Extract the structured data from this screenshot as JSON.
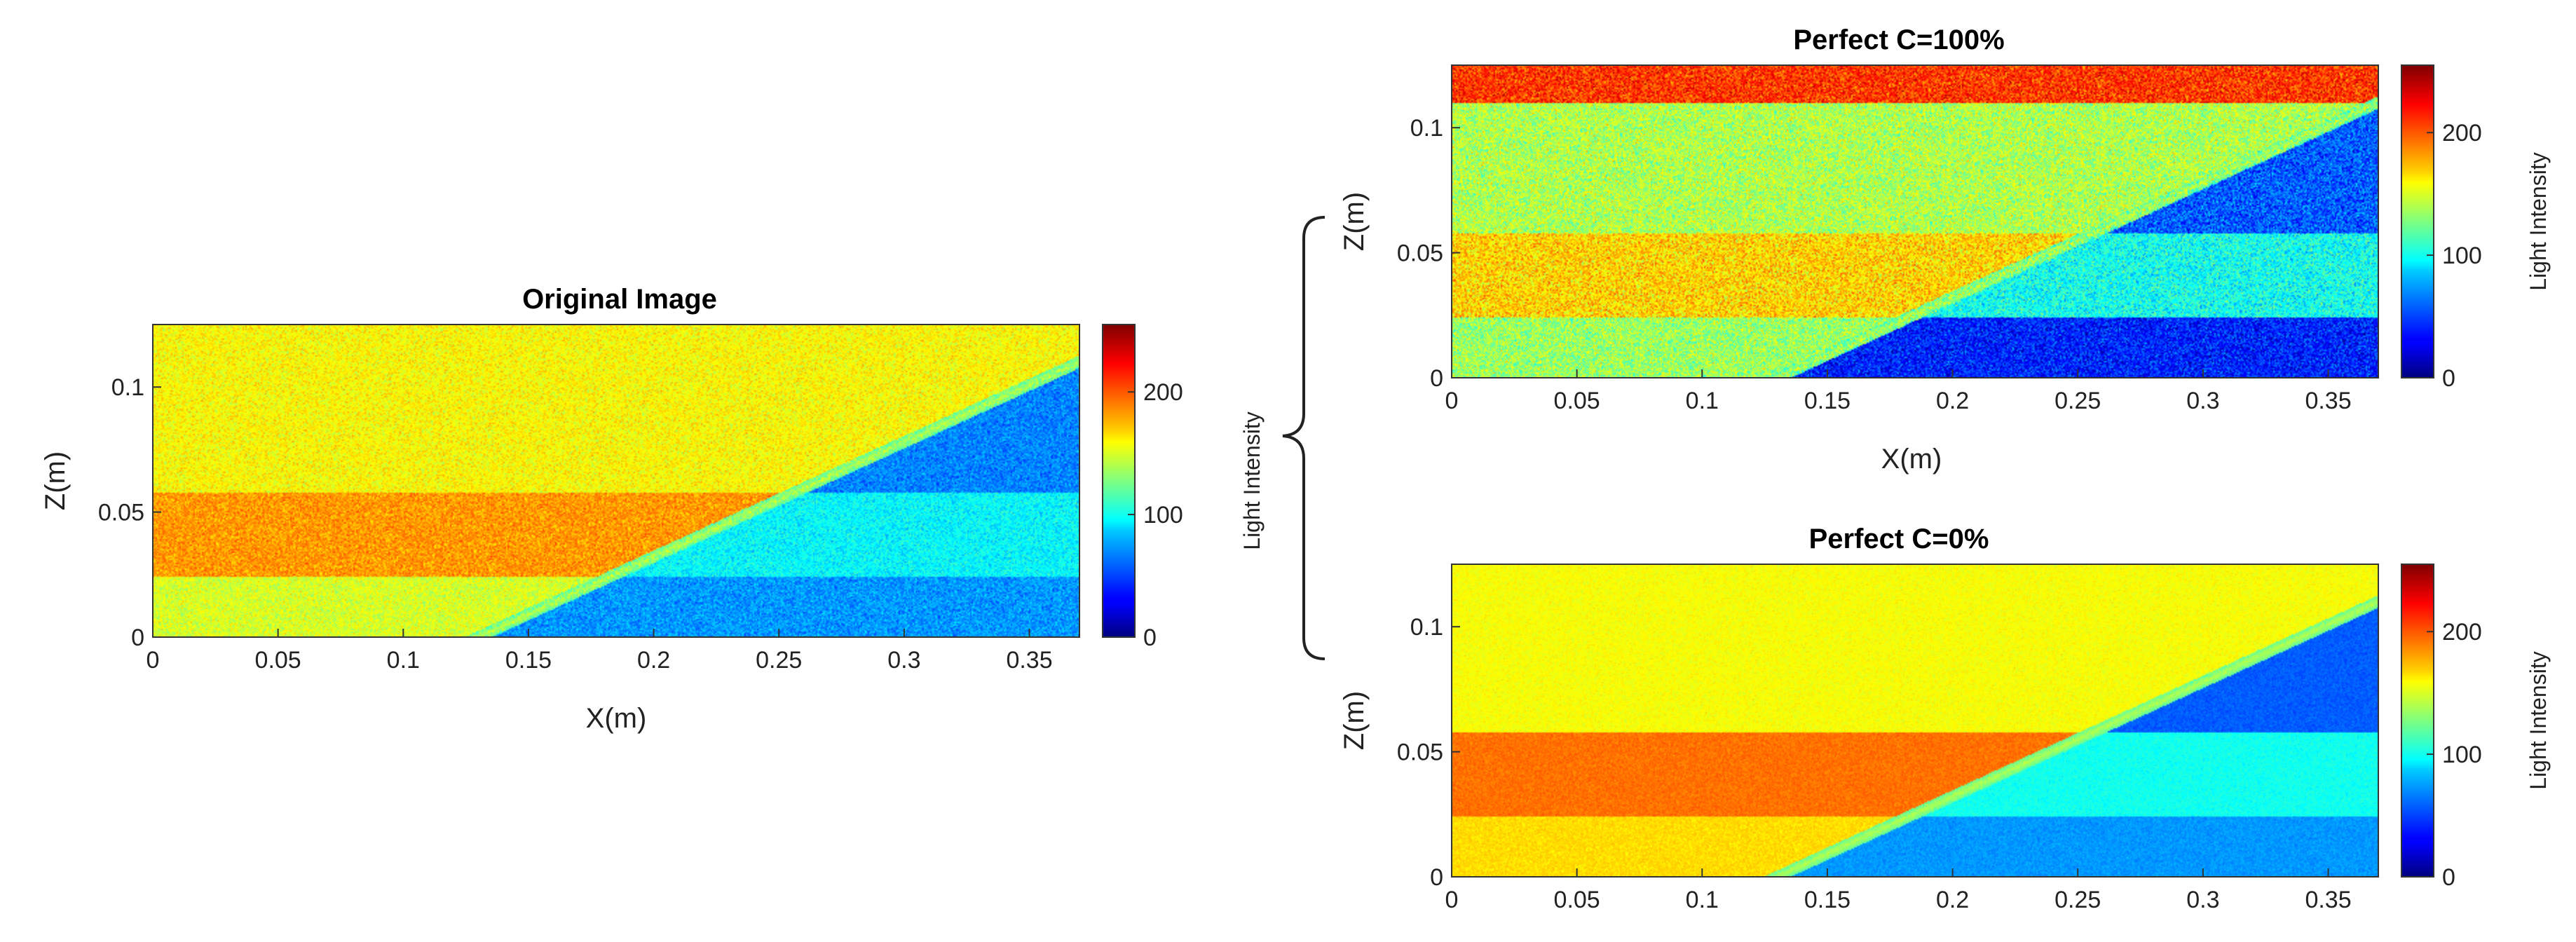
{
  "chart_data": [
    {
      "id": "original",
      "type": "heatmap",
      "title": "Original Image",
      "xlabel": "X(m)",
      "ylabel": "Z(m)",
      "colorbar_label": "Light Intensity",
      "xlim": [
        0,
        0.37
      ],
      "ylim": [
        0,
        0.125
      ],
      "clim": [
        0,
        255
      ],
      "xticks": [
        "0",
        "0.05",
        "0.1",
        "0.15",
        "0.2",
        "0.25",
        "0.3",
        "0.35"
      ],
      "yticks": [
        "0",
        "0.05",
        "0.1"
      ],
      "cticks": [
        "0",
        "100",
        "200"
      ],
      "interface_line": {
        "x": [
          0.13,
          0.37
        ],
        "z": [
          0,
          0.11
        ]
      },
      "layers": [
        {
          "zmin": 0.0,
          "zmax": 0.024,
          "above": 150,
          "below": 70
        },
        {
          "zmin": 0.024,
          "zmax": 0.058,
          "above": 185,
          "below": 95
        },
        {
          "zmin": 0.058,
          "zmax": 0.125,
          "above": 160,
          "below": 65
        }
      ],
      "noise": 14
    },
    {
      "id": "c100",
      "type": "heatmap",
      "title": "Perfect C=100%",
      "xlabel": "X(m)",
      "ylabel": "Z(m)",
      "colorbar_label": "Light Intensity",
      "xlim": [
        0,
        0.37
      ],
      "ylim": [
        0,
        0.125
      ],
      "clim": [
        0,
        255
      ],
      "xticks": [
        "0",
        "0.05",
        "0.1",
        "0.15",
        "0.2",
        "0.25",
        "0.3",
        "0.35"
      ],
      "yticks": [
        "0",
        "0.05",
        "0.1"
      ],
      "cticks": [
        "0",
        "100",
        "200"
      ],
      "interface_line": {
        "x": [
          0.13,
          0.37
        ],
        "z": [
          0,
          0.11
        ]
      },
      "layers": [
        {
          "zmin": 0.0,
          "zmax": 0.024,
          "above": 135,
          "below": 40
        },
        {
          "zmin": 0.024,
          "zmax": 0.058,
          "above": 170,
          "below": 100
        },
        {
          "zmin": 0.058,
          "zmax": 0.11,
          "above": 140,
          "below": 55
        },
        {
          "zmin": 0.11,
          "zmax": 0.125,
          "above": 210,
          "below": 210
        }
      ],
      "noise": 22
    },
    {
      "id": "c0",
      "type": "heatmap",
      "title": "Perfect C=0%",
      "xlabel": "",
      "ylabel": "Z(m)",
      "colorbar_label": "Light Intensity",
      "xlim": [
        0,
        0.37
      ],
      "ylim": [
        0,
        0.125
      ],
      "clim": [
        0,
        255
      ],
      "xticks": [
        "0",
        "0.05",
        "0.1",
        "0.15",
        "0.2",
        "0.25",
        "0.3",
        "0.35"
      ],
      "yticks": [
        "0",
        "0.05",
        "0.1"
      ],
      "cticks": [
        "0",
        "100",
        "200"
      ],
      "interface_line": {
        "x": [
          0.13,
          0.37
        ],
        "z": [
          0,
          0.11
        ]
      },
      "layers": [
        {
          "zmin": 0.0,
          "zmax": 0.024,
          "above": 168,
          "below": 70
        },
        {
          "zmin": 0.024,
          "zmax": 0.058,
          "above": 195,
          "below": 100
        },
        {
          "zmin": 0.058,
          "zmax": 0.125,
          "above": 158,
          "below": 55
        }
      ],
      "noise": 6
    }
  ],
  "colors": {
    "interface_glow": "#3fe0c8",
    "axis": "#333333"
  }
}
